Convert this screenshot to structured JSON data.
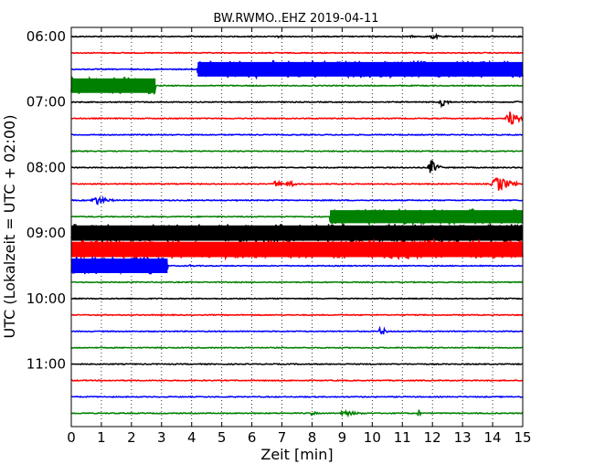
{
  "chart_data": {
    "type": "line",
    "title": "BW.RWMO..EHZ 2019-04-11",
    "xlabel": "Zeit  [min]",
    "ylabel": "UTC (Lokalzeit = UTC + 02:00)",
    "xlim": [
      0,
      15
    ],
    "x_ticks": [
      "0",
      "1",
      "2",
      "3",
      "4",
      "5",
      "6",
      "7",
      "8",
      "9",
      "10",
      "11",
      "12",
      "13",
      "14",
      "15"
    ],
    "y_ticks": [
      {
        "label": "06:00",
        "trace": 0
      },
      {
        "label": "07:00",
        "trace": 4
      },
      {
        "label": "08:00",
        "trace": 8
      },
      {
        "label": "09:00",
        "trace": 12
      },
      {
        "label": "10:00",
        "trace": 16
      },
      {
        "label": "11:00",
        "trace": 20
      }
    ],
    "grid": "vertical-dotted",
    "trace_interval_min": 15,
    "colors": [
      "#000000",
      "#ff0000",
      "#0000ff",
      "#008000"
    ],
    "traces": [
      {
        "start": "06:00",
        "events": [
          {
            "t0": 6.8,
            "t1": 7.1,
            "amp": 0.2
          },
          {
            "t0": 11.2,
            "t1": 11.5,
            "amp": 0.15
          },
          {
            "t0": 11.9,
            "t1": 12.3,
            "amp": 0.35
          }
        ]
      },
      {
        "start": "06:15",
        "events": []
      },
      {
        "start": "06:30",
        "events": [
          {
            "t0": 4.2,
            "t1": 15.0,
            "amp": 0.95
          }
        ]
      },
      {
        "start": "06:45",
        "events": [
          {
            "t0": 0.0,
            "t1": 2.8,
            "amp": 0.95
          }
        ]
      },
      {
        "start": "07:00",
        "events": [
          {
            "t0": 12.2,
            "t1": 12.6,
            "amp": 0.6
          },
          {
            "t0": 14.7,
            "t1": 15.0,
            "amp": 0.2
          }
        ]
      },
      {
        "start": "07:15",
        "events": [
          {
            "t0": 14.4,
            "t1": 15.0,
            "amp": 0.9
          }
        ]
      },
      {
        "start": "07:30",
        "events": []
      },
      {
        "start": "07:45",
        "events": []
      },
      {
        "start": "08:00",
        "events": [
          {
            "t0": 11.8,
            "t1": 12.3,
            "amp": 0.85
          }
        ]
      },
      {
        "start": "08:15",
        "events": [
          {
            "t0": 6.7,
            "t1": 7.0,
            "amp": 0.55
          },
          {
            "t0": 7.1,
            "t1": 7.5,
            "amp": 0.55
          },
          {
            "t0": 13.9,
            "t1": 14.8,
            "amp": 0.9
          }
        ]
      },
      {
        "start": "08:30",
        "events": [
          {
            "t0": 0.6,
            "t1": 1.4,
            "amp": 0.5
          }
        ]
      },
      {
        "start": "08:45",
        "events": [
          {
            "t0": 8.6,
            "t1": 15.0,
            "amp": 0.85
          }
        ]
      },
      {
        "start": "09:00",
        "events": [
          {
            "t0": 0.0,
            "t1": 15.0,
            "amp": 1.0
          }
        ]
      },
      {
        "start": "09:15",
        "events": [
          {
            "t0": 0.0,
            "t1": 15.0,
            "amp": 1.0
          }
        ]
      },
      {
        "start": "09:30",
        "events": [
          {
            "t0": 0.0,
            "t1": 3.2,
            "amp": 0.95
          },
          {
            "t0": 3.9,
            "t1": 4.1,
            "amp": 0.25
          }
        ]
      },
      {
        "start": "09:45",
        "events": []
      },
      {
        "start": "10:00",
        "events": []
      },
      {
        "start": "10:15",
        "events": []
      },
      {
        "start": "10:30",
        "events": [
          {
            "t0": 10.2,
            "t1": 10.5,
            "amp": 0.65
          }
        ]
      },
      {
        "start": "10:45",
        "events": []
      },
      {
        "start": "11:00",
        "events": []
      },
      {
        "start": "11:15",
        "events": []
      },
      {
        "start": "11:30",
        "events": []
      },
      {
        "start": "11:45",
        "events": [
          {
            "t0": 7.9,
            "t1": 8.2,
            "amp": 0.3
          },
          {
            "t0": 8.8,
            "t1": 9.8,
            "amp": 0.3
          },
          {
            "t0": 11.5,
            "t1": 11.6,
            "amp": 0.9
          }
        ]
      }
    ]
  }
}
